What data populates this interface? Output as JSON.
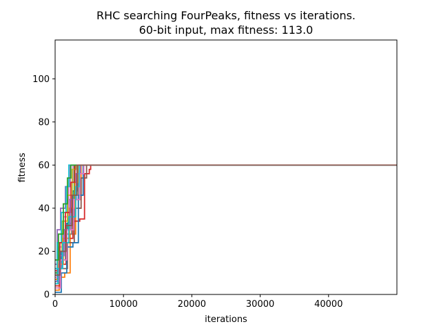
{
  "chart_data": {
    "type": "line",
    "title_line1": "RHC searching FourPeaks, fitness vs iterations.",
    "title_line2": "60-bit input, max fitness: 113.0",
    "xlabel": "iterations",
    "ylabel": "fitness",
    "xlim": [
      0,
      50000
    ],
    "ylim": [
      0,
      118
    ],
    "xticks": [
      0,
      10000,
      20000,
      30000,
      40000
    ],
    "yticks": [
      0,
      20,
      40,
      60,
      80,
      100
    ],
    "xtick_labels": [
      "0",
      "10000",
      "20000",
      "30000",
      "40000"
    ],
    "ytick_labels": [
      "0",
      "20",
      "40",
      "60",
      "80",
      "100"
    ],
    "grid": false,
    "legend": false,
    "colors": [
      "#1f77b4",
      "#ff7f0e",
      "#2ca02c",
      "#d62728",
      "#9467bd",
      "#8c564b",
      "#e377c2",
      "#7f7f7f",
      "#bcbd22",
      "#17becf"
    ],
    "series": [
      {
        "color": "#1f77b4",
        "points": [
          [
            0,
            6
          ],
          [
            300,
            12
          ],
          [
            900,
            20
          ],
          [
            1700,
            33
          ],
          [
            2600,
            48
          ],
          [
            3300,
            60
          ],
          [
            50000,
            60
          ]
        ]
      },
      {
        "color": "#ff7f0e",
        "points": [
          [
            0,
            2
          ],
          [
            600,
            8
          ],
          [
            1400,
            10
          ],
          [
            2200,
            28
          ],
          [
            3000,
            44
          ],
          [
            3800,
            60
          ],
          [
            50000,
            60
          ]
        ]
      },
      {
        "color": "#2ca02c",
        "points": [
          [
            0,
            10
          ],
          [
            400,
            18
          ],
          [
            1100,
            30
          ],
          [
            1900,
            44
          ],
          [
            2800,
            60
          ],
          [
            50000,
            60
          ]
        ]
      },
      {
        "color": "#d62728",
        "points": [
          [
            0,
            4
          ],
          [
            700,
            14
          ],
          [
            1600,
            26
          ],
          [
            2600,
            34
          ],
          [
            3600,
            35
          ],
          [
            4300,
            56
          ],
          [
            5000,
            58
          ],
          [
            5200,
            60
          ],
          [
            50000,
            60
          ]
        ]
      },
      {
        "color": "#9467bd",
        "points": [
          [
            0,
            14
          ],
          [
            300,
            30
          ],
          [
            800,
            40
          ],
          [
            1500,
            50
          ],
          [
            2200,
            60
          ],
          [
            50000,
            60
          ]
        ]
      },
      {
        "color": "#8c564b",
        "points": [
          [
            0,
            3
          ],
          [
            800,
            12
          ],
          [
            1800,
            24
          ],
          [
            2800,
            40
          ],
          [
            3800,
            54
          ],
          [
            4600,
            60
          ],
          [
            50000,
            60
          ]
        ]
      },
      {
        "color": "#e377c2",
        "points": [
          [
            0,
            8
          ],
          [
            500,
            22
          ],
          [
            1200,
            36
          ],
          [
            2000,
            52
          ],
          [
            2600,
            60
          ],
          [
            50000,
            60
          ]
        ]
      },
      {
        "color": "#7f7f7f",
        "points": [
          [
            0,
            5
          ],
          [
            600,
            16
          ],
          [
            1500,
            28
          ],
          [
            2400,
            40
          ],
          [
            3400,
            60
          ],
          [
            50000,
            60
          ]
        ]
      },
      {
        "color": "#bcbd22",
        "points": [
          [
            0,
            9
          ],
          [
            400,
            20
          ],
          [
            1000,
            34
          ],
          [
            1800,
            46
          ],
          [
            2500,
            58
          ],
          [
            3000,
            60
          ],
          [
            50000,
            60
          ]
        ]
      },
      {
        "color": "#17becf",
        "points": [
          [
            0,
            12
          ],
          [
            300,
            24
          ],
          [
            900,
            38
          ],
          [
            1600,
            50
          ],
          [
            2000,
            60
          ],
          [
            50000,
            60
          ]
        ]
      },
      {
        "color": "#1f77b4",
        "points": [
          [
            0,
            1
          ],
          [
            900,
            10
          ],
          [
            1700,
            22
          ],
          [
            2600,
            24
          ],
          [
            3400,
            46
          ],
          [
            4100,
            60
          ],
          [
            50000,
            60
          ]
        ]
      },
      {
        "color": "#ff7f0e",
        "points": [
          [
            0,
            7
          ],
          [
            500,
            14
          ],
          [
            1200,
            26
          ],
          [
            2100,
            40
          ],
          [
            2900,
            52
          ],
          [
            3400,
            60
          ],
          [
            50000,
            60
          ]
        ]
      },
      {
        "color": "#d62728",
        "points": [
          [
            0,
            11
          ],
          [
            700,
            24
          ],
          [
            1500,
            38
          ],
          [
            2300,
            52
          ],
          [
            2900,
            60
          ],
          [
            50000,
            60
          ]
        ]
      },
      {
        "color": "#9467bd",
        "points": [
          [
            0,
            6
          ],
          [
            600,
            18
          ],
          [
            1300,
            30
          ],
          [
            2200,
            44
          ],
          [
            3100,
            56
          ],
          [
            3700,
            60
          ],
          [
            50000,
            60
          ]
        ]
      },
      {
        "color": "#2ca02c",
        "points": [
          [
            0,
            16
          ],
          [
            500,
            28
          ],
          [
            1200,
            42
          ],
          [
            1800,
            54
          ],
          [
            2300,
            60
          ],
          [
            50000,
            60
          ]
        ]
      },
      {
        "color": "#e377c2",
        "points": [
          [
            0,
            3
          ],
          [
            800,
            16
          ],
          [
            1700,
            30
          ],
          [
            2700,
            44
          ],
          [
            3600,
            56
          ],
          [
            4200,
            60
          ],
          [
            50000,
            60
          ]
        ]
      },
      {
        "color": "#17becf",
        "points": [
          [
            0,
            5
          ],
          [
            400,
            12
          ],
          [
            1100,
            24
          ],
          [
            2000,
            36
          ],
          [
            3000,
            50
          ],
          [
            3500,
            60
          ],
          [
            50000,
            60
          ]
        ]
      },
      {
        "color": "#8c564b",
        "points": [
          [
            0,
            9
          ],
          [
            700,
            20
          ],
          [
            1600,
            32
          ],
          [
            2500,
            46
          ],
          [
            3200,
            60
          ],
          [
            50000,
            60
          ]
        ]
      }
    ]
  }
}
